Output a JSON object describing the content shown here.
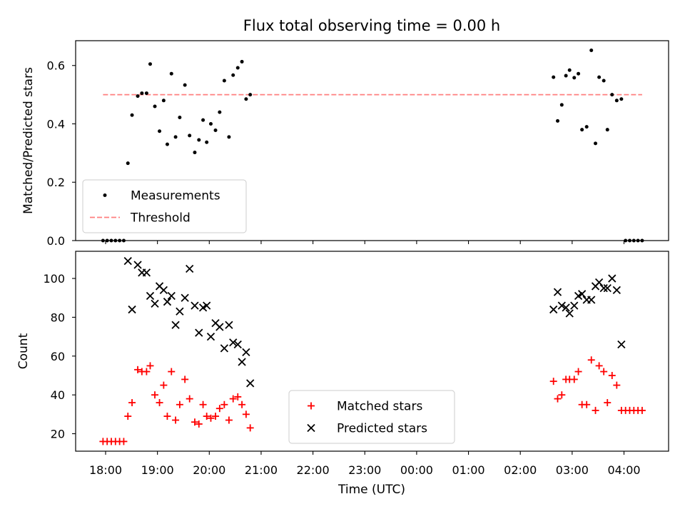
{
  "figure": {
    "title": "Flux total observing time = 0.00 h",
    "xlabel": "Time (UTC)",
    "xtick_labels": [
      "18:00",
      "19:00",
      "20:00",
      "21:00",
      "22:00",
      "23:00",
      "00:00",
      "01:00",
      "02:00",
      "03:00",
      "04:00"
    ]
  },
  "chart_data": [
    {
      "type": "scatter",
      "ylabel": "Matched/Predicted stars",
      "x_unit": "hours since 18:00 UTC",
      "ylim": [
        0,
        0.685
      ],
      "yticks": [
        0.0,
        0.2,
        0.4,
        0.6
      ],
      "ytick_labels": [
        "0.0",
        "0.2",
        "0.4",
        "0.6"
      ],
      "legend_position": "lower-left",
      "threshold": {
        "name": "Threshold",
        "value": 0.5,
        "x_range": [
          -0.05,
          10.35
        ],
        "color": "#ff7f7f"
      },
      "series": [
        {
          "name": "Measurements",
          "color": "#000000",
          "marker": "dot",
          "points": [
            [
              -0.05,
              0.0
            ],
            [
              0.03,
              0.0
            ],
            [
              0.11,
              0.0
            ],
            [
              0.19,
              0.0
            ],
            [
              0.27,
              0.0
            ],
            [
              0.35,
              0.0
            ],
            [
              0.43,
              0.265
            ],
            [
              0.51,
              0.43
            ],
            [
              0.62,
              0.495
            ],
            [
              0.7,
              0.505
            ],
            [
              0.79,
              0.505
            ],
            [
              0.86,
              0.605
            ],
            [
              0.95,
              0.46
            ],
            [
              1.04,
              0.375
            ],
            [
              1.12,
              0.48
            ],
            [
              1.19,
              0.33
            ],
            [
              1.27,
              0.572
            ],
            [
              1.35,
              0.355
            ],
            [
              1.43,
              0.422
            ],
            [
              1.53,
              0.533
            ],
            [
              1.62,
              0.36
            ],
            [
              1.72,
              0.302
            ],
            [
              1.8,
              0.345
            ],
            [
              1.88,
              0.413
            ],
            [
              1.95,
              0.337
            ],
            [
              2.03,
              0.4
            ],
            [
              2.12,
              0.378
            ],
            [
              2.2,
              0.44
            ],
            [
              2.29,
              0.548
            ],
            [
              2.38,
              0.355
            ],
            [
              2.46,
              0.567
            ],
            [
              2.55,
              0.592
            ],
            [
              2.63,
              0.613
            ],
            [
              2.71,
              0.485
            ],
            [
              2.79,
              0.5
            ],
            [
              8.64,
              0.56
            ],
            [
              8.72,
              0.41
            ],
            [
              8.8,
              0.465
            ],
            [
              8.88,
              0.565
            ],
            [
              8.95,
              0.584
            ],
            [
              9.04,
              0.558
            ],
            [
              9.12,
              0.572
            ],
            [
              9.19,
              0.38
            ],
            [
              9.28,
              0.39
            ],
            [
              9.37,
              0.652
            ],
            [
              9.45,
              0.333
            ],
            [
              9.52,
              0.56
            ],
            [
              9.61,
              0.548
            ],
            [
              9.68,
              0.38
            ],
            [
              9.77,
              0.5
            ],
            [
              9.86,
              0.48
            ],
            [
              9.95,
              0.485
            ],
            [
              10.03,
              0.0
            ],
            [
              10.11,
              0.0
            ],
            [
              10.19,
              0.0
            ],
            [
              10.27,
              0.0
            ],
            [
              10.35,
              0.0
            ]
          ]
        }
      ]
    },
    {
      "type": "scatter",
      "ylabel": "Count",
      "x_unit": "hours since 18:00 UTC",
      "ylim": [
        11,
        114
      ],
      "yticks": [
        20,
        40,
        60,
        80,
        100
      ],
      "ytick_labels": [
        "20",
        "40",
        "60",
        "80",
        "100"
      ],
      "legend_position": "lower-center",
      "series": [
        {
          "name": "Matched stars",
          "color": "#ff0000",
          "marker": "plus",
          "points": [
            [
              -0.05,
              16
            ],
            [
              0.03,
              16
            ],
            [
              0.11,
              16
            ],
            [
              0.19,
              16
            ],
            [
              0.27,
              16
            ],
            [
              0.35,
              16
            ],
            [
              0.43,
              29
            ],
            [
              0.51,
              36
            ],
            [
              0.62,
              53
            ],
            [
              0.7,
              52
            ],
            [
              0.79,
              52
            ],
            [
              0.86,
              55
            ],
            [
              0.95,
              40
            ],
            [
              1.04,
              36
            ],
            [
              1.12,
              45
            ],
            [
              1.19,
              29
            ],
            [
              1.27,
              52
            ],
            [
              1.35,
              27
            ],
            [
              1.43,
              35
            ],
            [
              1.53,
              48
            ],
            [
              1.62,
              38
            ],
            [
              1.72,
              26
            ],
            [
              1.8,
              25
            ],
            [
              1.88,
              35
            ],
            [
              1.95,
              29
            ],
            [
              2.03,
              28
            ],
            [
              2.12,
              29
            ],
            [
              2.2,
              33
            ],
            [
              2.29,
              35
            ],
            [
              2.38,
              27
            ],
            [
              2.46,
              38
            ],
            [
              2.55,
              39
            ],
            [
              2.63,
              35
            ],
            [
              2.71,
              30
            ],
            [
              2.79,
              23
            ],
            [
              8.64,
              47
            ],
            [
              8.72,
              38
            ],
            [
              8.8,
              40
            ],
            [
              8.88,
              48
            ],
            [
              8.95,
              48
            ],
            [
              9.04,
              48
            ],
            [
              9.12,
              52
            ],
            [
              9.19,
              35
            ],
            [
              9.28,
              35
            ],
            [
              9.37,
              58
            ],
            [
              9.45,
              32
            ],
            [
              9.52,
              55
            ],
            [
              9.61,
              52
            ],
            [
              9.68,
              36
            ],
            [
              9.77,
              50
            ],
            [
              9.86,
              45
            ],
            [
              9.95,
              32
            ],
            [
              10.03,
              32
            ],
            [
              10.11,
              32
            ],
            [
              10.19,
              32
            ],
            [
              10.27,
              32
            ],
            [
              10.35,
              32
            ]
          ]
        },
        {
          "name": "Predicted stars",
          "color": "#000000",
          "marker": "x",
          "points": [
            [
              0.43,
              109
            ],
            [
              0.51,
              84
            ],
            [
              0.62,
              107
            ],
            [
              0.7,
              103
            ],
            [
              0.79,
              103
            ],
            [
              0.86,
              91
            ],
            [
              0.95,
              87
            ],
            [
              1.04,
              96
            ],
            [
              1.12,
              94
            ],
            [
              1.19,
              88
            ],
            [
              1.27,
              91
            ],
            [
              1.35,
              76
            ],
            [
              1.43,
              83
            ],
            [
              1.53,
              90
            ],
            [
              1.62,
              105
            ],
            [
              1.72,
              86
            ],
            [
              1.8,
              72
            ],
            [
              1.88,
              85
            ],
            [
              1.95,
              86
            ],
            [
              2.03,
              70
            ],
            [
              2.12,
              77
            ],
            [
              2.2,
              75
            ],
            [
              2.29,
              64
            ],
            [
              2.38,
              76
            ],
            [
              2.46,
              67
            ],
            [
              2.55,
              66
            ],
            [
              2.63,
              57
            ],
            [
              2.71,
              62
            ],
            [
              2.79,
              46
            ],
            [
              8.64,
              84
            ],
            [
              8.72,
              93
            ],
            [
              8.8,
              86
            ],
            [
              8.88,
              85
            ],
            [
              8.95,
              82
            ],
            [
              9.04,
              86
            ],
            [
              9.12,
              91
            ],
            [
              9.19,
              92
            ],
            [
              9.28,
              89
            ],
            [
              9.37,
              89
            ],
            [
              9.45,
              96
            ],
            [
              9.52,
              98
            ],
            [
              9.61,
              95
            ],
            [
              9.68,
              95
            ],
            [
              9.77,
              100
            ],
            [
              9.86,
              94
            ],
            [
              9.95,
              66
            ]
          ]
        }
      ]
    }
  ]
}
